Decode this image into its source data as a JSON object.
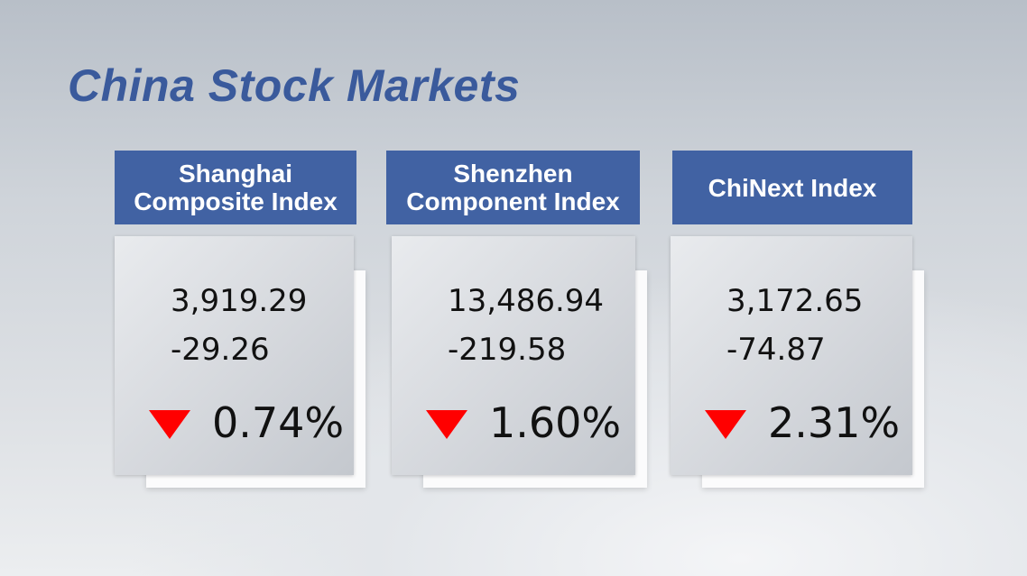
{
  "title": "China Stock Markets",
  "cards": [
    {
      "name_lines": [
        "Shanghai",
        "Composite Index"
      ],
      "value": "3,919.29",
      "change": "-29.26",
      "percent": "0.74%"
    },
    {
      "name_lines": [
        "Shenzhen",
        "Component Index"
      ],
      "value": "13,486.94",
      "change": "-219.58",
      "percent": "1.60%"
    },
    {
      "name_lines": [
        "ChiNext Index"
      ],
      "value": "3,172.65",
      "change": "-74.87",
      "percent": "2.31%"
    }
  ]
}
